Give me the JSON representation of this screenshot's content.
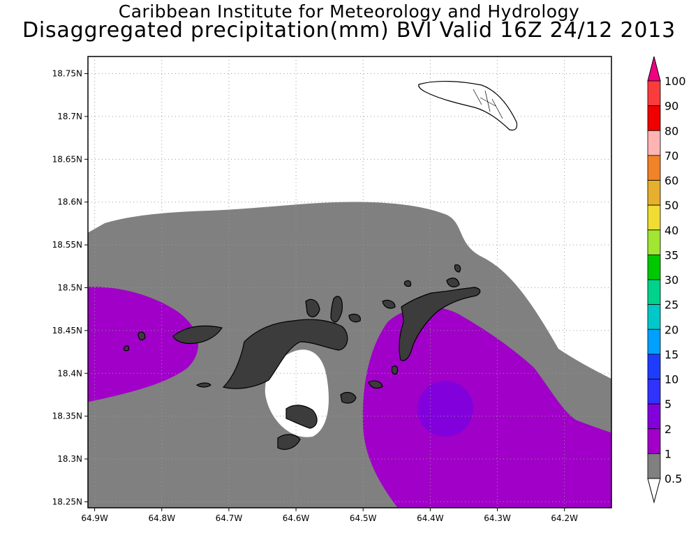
{
  "titles": {
    "line1": "Caribbean Institute for Meteorology and Hydrology",
    "line2": "Disaggregated precipitation(mm) BVI Valid 16Z 24/12 2013"
  },
  "map": {
    "lon_range": [
      -64.91,
      -64.13
    ],
    "lat_range": [
      18.243,
      18.77
    ],
    "lat_ticks": [
      {
        "value": 18.75,
        "label": "18.75N"
      },
      {
        "value": 18.7,
        "label": "18.7N"
      },
      {
        "value": 18.65,
        "label": "18.65N"
      },
      {
        "value": 18.6,
        "label": "18.6N"
      },
      {
        "value": 18.55,
        "label": "18.55N"
      },
      {
        "value": 18.5,
        "label": "18.5N"
      },
      {
        "value": 18.45,
        "label": "18.45N"
      },
      {
        "value": 18.4,
        "label": "18.4N"
      },
      {
        "value": 18.35,
        "label": "18.35N"
      },
      {
        "value": 18.3,
        "label": "18.3N"
      },
      {
        "value": 18.25,
        "label": "18.25N"
      }
    ],
    "lon_ticks": [
      {
        "value": -64.9,
        "label": "64.9W"
      },
      {
        "value": -64.8,
        "label": "64.8W"
      },
      {
        "value": -64.7,
        "label": "64.7W"
      },
      {
        "value": -64.6,
        "label": "64.6W"
      },
      {
        "value": -64.5,
        "label": "64.5W"
      },
      {
        "value": -64.4,
        "label": "64.4W"
      },
      {
        "value": -64.3,
        "label": "64.3W"
      },
      {
        "value": -64.2,
        "label": "64.2W"
      }
    ],
    "grid": "dotted",
    "colors": {
      "range_0_5_to_1": "#808080",
      "range_1_to_2": "#a000c8",
      "range_2_to_5": "#8200dc",
      "land": "#ffffff",
      "outline": "#000000"
    }
  },
  "colorbar": {
    "labels": [
      "100",
      "90",
      "80",
      "70",
      "60",
      "50",
      "40",
      "35",
      "30",
      "25",
      "20",
      "15",
      "10",
      "5",
      "2",
      "1",
      "0.5"
    ],
    "colors": [
      "#f00082",
      "#fa3c3c",
      "#f00000",
      "#ffb4b4",
      "#f08228",
      "#e6af2d",
      "#f0dc32",
      "#a0e632",
      "#00c800",
      "#00d28c",
      "#00c8c8",
      "#00a0ff",
      "#1e3cff",
      "#3232ff",
      "#8200dc",
      "#a000c8",
      "#808080",
      "#ffffff"
    ]
  }
}
